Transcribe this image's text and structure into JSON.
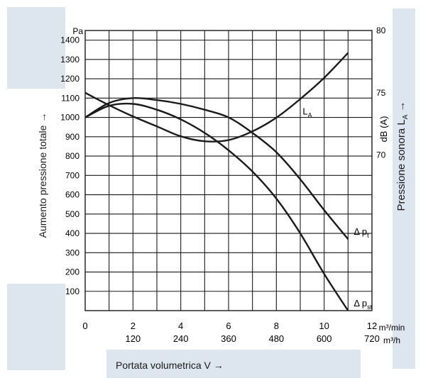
{
  "chart_data": {
    "type": "line",
    "xlabel": "Portata volumetrica V →",
    "ylabel_left": "Aumento pressione totale →",
    "ylabel_right": "Pressione sonora L",
    "ylabel_right_sub": "A",
    "ylabel_right_arrow": "→",
    "y_unit_left": "Pa",
    "y_unit_right": "dB (A)",
    "x_unit_top": "m³/min",
    "x_unit_bottom": "m³/h",
    "xlim": [
      0,
      12
    ],
    "ylim": [
      0,
      1450
    ],
    "ylim_right": [
      57.5,
      80
    ],
    "grid": true,
    "x_ticks": [
      0,
      2,
      4,
      6,
      8,
      10,
      12
    ],
    "x_ticks_secondary": [
      {
        "x": 2,
        "label": "120"
      },
      {
        "x": 4,
        "label": "240"
      },
      {
        "x": 6,
        "label": "360"
      },
      {
        "x": 8,
        "label": "480"
      },
      {
        "x": 10,
        "label": "600"
      },
      {
        "x": 12,
        "label": "720"
      }
    ],
    "y_ticks": [
      100,
      200,
      300,
      400,
      500,
      600,
      700,
      800,
      900,
      1000,
      1100,
      1200,
      1300,
      1400
    ],
    "y_ticks_right": [
      70,
      75,
      80
    ],
    "series": [
      {
        "name": "L",
        "name_sub": "A",
        "axis": "right",
        "x": [
          0,
          1,
          2,
          3,
          4,
          5,
          6,
          7,
          8,
          9,
          10,
          11
        ],
        "y": [
          75,
          74,
          73.1,
          72.3,
          71.5,
          71.1,
          71.2,
          71.9,
          73,
          74.5,
          76.2,
          78.2
        ]
      },
      {
        "name": "Δ p",
        "name_sub": "t",
        "axis": "left",
        "x": [
          0,
          1,
          2,
          3,
          4,
          5,
          6,
          7,
          8,
          9,
          10,
          11
        ],
        "y": [
          1000,
          1075,
          1100,
          1090,
          1070,
          1040,
          1000,
          920,
          820,
          680,
          520,
          370
        ]
      },
      {
        "name": "Δ p",
        "name_sub": "st",
        "axis": "left",
        "x": [
          0,
          1,
          2,
          3,
          4,
          5,
          6,
          7,
          8,
          9,
          10,
          11
        ],
        "y": [
          1000,
          1060,
          1070,
          1040,
          990,
          920,
          830,
          720,
          580,
          400,
          190,
          0
        ]
      }
    ]
  }
}
